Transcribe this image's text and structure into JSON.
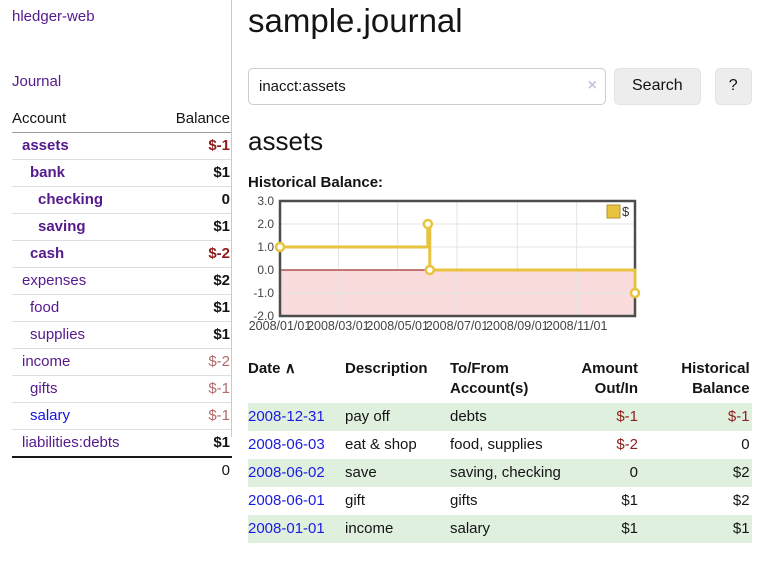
{
  "sidebar": {
    "brand": "hledger-web",
    "nav": {
      "journal": "Journal"
    },
    "accounts": {
      "headers": {
        "account": "Account",
        "balance": "Balance"
      },
      "rows": [
        {
          "name": "assets",
          "balance": "$-1"
        },
        {
          "name": "bank",
          "balance": "$1"
        },
        {
          "name": "checking",
          "balance": "0"
        },
        {
          "name": "saving",
          "balance": "$1"
        },
        {
          "name": "cash",
          "balance": "$-2"
        },
        {
          "name": "expenses",
          "balance": "$2"
        },
        {
          "name": "food",
          "balance": "$1"
        },
        {
          "name": "supplies",
          "balance": "$1"
        },
        {
          "name": "income",
          "balance": "$-2"
        },
        {
          "name": "gifts",
          "balance": "$-1"
        },
        {
          "name": "salary",
          "balance": "$-1"
        },
        {
          "name": "liabilities:debts",
          "balance": "$1"
        }
      ],
      "total": "0"
    }
  },
  "main": {
    "title": "sample.journal",
    "search": {
      "query": "inacct:assets",
      "clear_icon": "×",
      "button": "Search",
      "help_button": "?"
    },
    "account_heading": "assets",
    "chart_label": "Historical Balance:",
    "register": {
      "sort_icon": "∧",
      "headers": {
        "date": "Date",
        "description": "Description",
        "accounts": "To/From Account(s)",
        "amount": "Amount Out/In",
        "balance": "Historical Balance"
      },
      "rows": [
        {
          "date": "2008-12-31",
          "description": "pay off",
          "accounts": "debts",
          "amount": "$-1",
          "balance": "$-1"
        },
        {
          "date": "2008-06-03",
          "description": "eat & shop",
          "accounts": "food, supplies",
          "amount": "$-2",
          "balance": "0"
        },
        {
          "date": "2008-06-02",
          "description": "save",
          "accounts": "saving, checking",
          "amount": "0",
          "balance": "$2"
        },
        {
          "date": "2008-06-01",
          "description": "gift",
          "accounts": "gifts",
          "amount": "$1",
          "balance": "$2"
        },
        {
          "date": "2008-01-01",
          "description": "income",
          "accounts": "salary",
          "amount": "$1",
          "balance": "$1"
        }
      ]
    }
  },
  "chart_data": {
    "type": "line",
    "style": "step",
    "title": "Historical Balance:",
    "series": [
      {
        "name": "$",
        "color": "#e8c33f",
        "points": [
          {
            "date": "2008-01-01",
            "value": 1
          },
          {
            "date": "2008-06-01",
            "value": 2
          },
          {
            "date": "2008-06-03",
            "value": 0
          },
          {
            "date": "2008-12-31",
            "value": -1
          }
        ]
      }
    ],
    "xrange": [
      "2008-01-01",
      "2008-12-31"
    ],
    "ylim": [
      -2,
      3
    ],
    "yticks": [
      3.0,
      2.0,
      1.0,
      0.0,
      -1.0,
      -2.0
    ],
    "xticks": [
      {
        "date": "2008-01-01",
        "label": "2008/01/01"
      },
      {
        "date": "2008-03-01",
        "label": "2008/03/01"
      },
      {
        "date": "2008-05-01",
        "label": "2008/05/01"
      },
      {
        "date": "2008-07-01",
        "label": "2008/07/01"
      },
      {
        "date": "2008-09-01",
        "label": "2008/09/01"
      },
      {
        "date": "2008-11-01",
        "label": "2008/11/01"
      }
    ],
    "grid": true,
    "legend_position": "top-right",
    "colors": {
      "negative_region": "#fbdcdc",
      "zero_line": "#8b0000",
      "grid": "#e3e3e3",
      "border": "#4d4d4d",
      "legend_swatch_border": "#b6922e"
    }
  }
}
